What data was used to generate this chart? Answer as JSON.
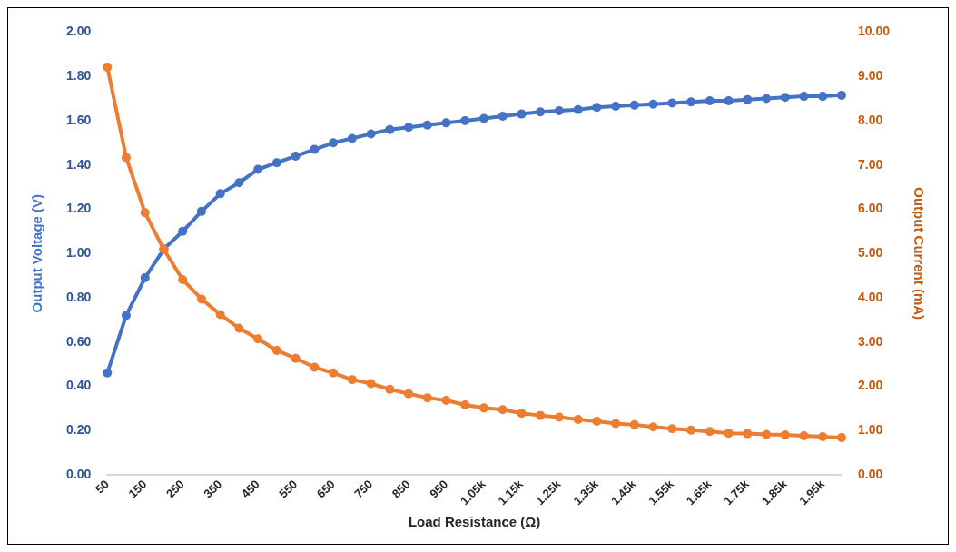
{
  "chart_data": {
    "type": "line",
    "xlabel": "Load Resistance (Ω)",
    "ylabel": "Output Voltage (V)",
    "y2label": "Output Current (mA)",
    "categories": [
      "50",
      null,
      "150",
      null,
      "250",
      null,
      "350",
      null,
      "450",
      null,
      "550",
      null,
      "650",
      null,
      "750",
      null,
      "850",
      null,
      "950",
      null,
      "1.05k",
      null,
      "1.15k",
      null,
      "1.25k",
      null,
      "1.35k",
      null,
      "1.45k",
      null,
      "1.55k",
      null,
      "1.65k",
      null,
      "1.75k",
      null,
      "1.85k",
      null,
      "1.95k",
      null
    ],
    "series": [
      {
        "color": "#4472c4",
        "values": [
          0.46,
          0.72,
          0.89,
          1.02,
          1.1,
          1.19,
          1.27,
          1.32,
          1.38,
          1.41,
          1.44,
          1.47,
          1.5,
          1.52,
          1.54,
          1.56,
          1.57,
          1.58,
          1.59,
          1.6,
          1.61,
          1.62,
          1.63,
          1.64,
          1.645,
          1.65,
          1.66,
          1.665,
          1.67,
          1.675,
          1.68,
          1.685,
          1.69,
          1.69,
          1.695,
          1.7,
          1.705,
          1.71,
          1.71,
          1.715
        ]
      },
      {
        "color": "#ed7d31",
        "axis": "y2",
        "values": [
          9.21,
          7.17,
          5.92,
          5.09,
          4.41,
          3.97,
          3.62,
          3.31,
          3.07,
          2.81,
          2.63,
          2.43,
          2.3,
          2.15,
          2.06,
          1.93,
          1.83,
          1.74,
          1.68,
          1.58,
          1.51,
          1.47,
          1.39,
          1.34,
          1.3,
          1.25,
          1.21,
          1.16,
          1.13,
          1.08,
          1.04,
          1.01,
          0.98,
          0.94,
          0.93,
          0.91,
          0.9,
          0.88,
          0.86,
          0.84
        ]
      }
    ],
    "ylim": [
      0,
      2
    ],
    "yticks": [
      {
        "value": 0,
        "label": "0.00"
      },
      {
        "value": 0.2,
        "label": "0.20"
      },
      {
        "value": 0.4,
        "label": "0.40"
      },
      {
        "value": 0.6,
        "label": "0.60"
      },
      {
        "value": 0.8,
        "label": "0.80"
      },
      {
        "value": 1,
        "label": "1.00"
      },
      {
        "value": 1.2,
        "label": "1.20"
      },
      {
        "value": 1.4,
        "label": "1.40"
      },
      {
        "value": 1.6,
        "label": "1.60"
      },
      {
        "value": 1.8,
        "label": "1.80"
      },
      {
        "value": 2,
        "label": "2.00"
      }
    ],
    "y2lim": [
      0,
      10
    ],
    "y2ticks": [
      {
        "value": 0,
        "label": "0.00"
      },
      {
        "value": 1,
        "label": "1.00"
      },
      {
        "value": 2,
        "label": "2.00"
      },
      {
        "value": 3,
        "label": "3.00"
      },
      {
        "value": 4,
        "label": "4.00"
      },
      {
        "value": 5,
        "label": "5.00"
      },
      {
        "value": 6,
        "label": "6.00"
      },
      {
        "value": 7,
        "label": "7.00"
      },
      {
        "value": 8,
        "label": "8.00"
      },
      {
        "value": 9,
        "label": "9.00"
      },
      {
        "value": 10,
        "label": "10.00"
      }
    ],
    "grid": false,
    "legend": false,
    "marker": "circle",
    "line_style": "solid"
  }
}
